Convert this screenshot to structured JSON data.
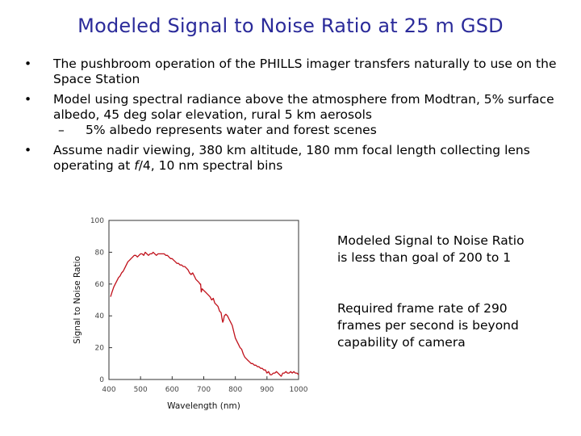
{
  "slide": {
    "title": "Modeled Signal to Noise Ratio at 25 m GSD",
    "bullets": [
      {
        "text": "The pushbroom operation of the PHILLS imager transfers naturally to use on the Space Station"
      },
      {
        "text": "Model using spectral radiance above the atmosphere from Modtran, 5% surface albedo, 45 deg solar elevation, rural 5 km aerosols",
        "sub": "5% albedo represents water and forest scenes"
      },
      {
        "text_before": "Assume nadir viewing, 380 km altitude, 180 mm focal length collecting lens operating at ",
        "text_italic": "f",
        "text_after": "/4, 10 nm spectral bins"
      }
    ],
    "side_notes": [
      "Modeled Signal to Noise Ratio is less than goal of 200 to 1",
      "Required frame rate of 290 frames per second is beyond capability of camera"
    ]
  },
  "chart_data": {
    "type": "line",
    "xlabel": "Wavelength (nm)",
    "ylabel": "Signal to Noise Ratio",
    "xlim": [
      400,
      1000
    ],
    "ylim": [
      0,
      100
    ],
    "xticks": [
      400,
      500,
      600,
      700,
      800,
      900,
      1000
    ],
    "yticks": [
      0,
      20,
      40,
      60,
      80,
      100
    ],
    "grid": false,
    "line_color": "#c0101a",
    "series": [
      {
        "x": [
          405,
          410,
          415,
          420,
          425,
          430,
          435,
          440,
          445,
          450,
          455,
          460,
          465,
          470,
          475,
          480,
          485,
          490,
          495,
          500,
          505,
          510,
          515,
          520,
          525,
          530,
          535,
          540,
          545,
          550,
          555,
          560,
          565,
          570,
          575,
          580,
          585,
          590,
          595,
          600,
          605,
          610,
          615,
          620,
          625,
          630,
          635,
          640,
          645,
          650,
          655,
          660,
          665,
          670,
          675,
          680,
          685,
          688,
          690,
          692,
          695,
          700,
          705,
          710,
          715,
          720,
          725,
          730,
          735,
          740,
          745,
          750,
          755,
          758,
          760,
          762,
          765,
          770,
          775,
          780,
          785,
          790,
          795,
          800,
          805,
          810,
          815,
          820,
          825,
          830,
          835,
          840,
          845,
          850,
          855,
          860,
          865,
          870,
          875,
          880,
          885,
          890,
          895,
          900,
          905,
          910,
          915,
          920,
          925,
          930,
          935,
          940,
          945,
          950,
          955,
          960,
          965,
          970,
          975,
          980,
          985,
          990,
          995,
          1000
        ],
        "values": [
          52,
          55,
          58,
          60,
          62,
          64,
          65,
          67,
          68,
          70,
          72,
          74,
          75,
          76,
          77,
          78,
          78,
          77,
          78,
          79,
          79,
          78,
          80,
          79,
          78,
          79,
          79,
          80,
          79,
          78,
          79,
          79,
          79,
          79,
          79,
          78,
          78,
          77,
          76,
          76,
          75,
          74,
          73,
          73,
          72,
          72,
          71,
          71,
          70,
          69,
          67,
          66,
          67,
          65,
          63,
          62,
          61,
          60,
          60,
          55,
          57,
          56,
          55,
          54,
          53,
          52,
          50,
          51,
          48,
          47,
          46,
          43,
          42,
          38,
          36,
          37,
          40,
          41,
          40,
          38,
          36,
          34,
          30,
          26,
          24,
          22,
          20,
          19,
          16,
          14,
          13,
          12,
          11,
          10,
          10,
          9,
          9,
          8,
          8,
          7,
          7,
          6,
          6,
          4,
          5,
          3,
          3,
          4,
          4,
          5,
          4,
          3,
          2,
          4,
          4,
          5,
          4,
          4,
          5,
          4,
          5,
          4,
          4,
          3
        ]
      }
    ]
  }
}
